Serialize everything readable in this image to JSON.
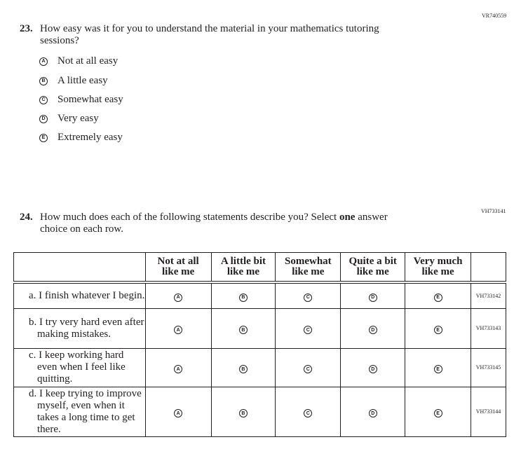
{
  "q23": {
    "id": "VR740559",
    "number": "23.",
    "text": "How easy was it for you to understand the material in your mathematics tutoring",
    "text2": "sessions?",
    "options": [
      {
        "letter": "A",
        "label": "Not at all easy"
      },
      {
        "letter": "B",
        "label": "A little easy"
      },
      {
        "letter": "C",
        "label": "Somewhat easy"
      },
      {
        "letter": "D",
        "label": "Very easy"
      },
      {
        "letter": "E",
        "label": "Extremely easy"
      }
    ]
  },
  "q24": {
    "id": "VH733141",
    "number": "24.",
    "text_a": "How much does each of the following statements describe you? Select ",
    "text_bold": "one",
    "text_b": " answer",
    "text2": "choice on each row.",
    "columns": [
      {
        "l1": "Not at all",
        "l2": "like me"
      },
      {
        "l1": "A little bit",
        "l2": "like me"
      },
      {
        "l1": "Somewhat",
        "l2": "like me"
      },
      {
        "l1": "Quite a bit",
        "l2": "like me"
      },
      {
        "l1": "Very much",
        "l2": "like me"
      }
    ],
    "letters": [
      "A",
      "B",
      "C",
      "D",
      "E"
    ],
    "rows": [
      {
        "label": "a. I finish whatever I begin.",
        "id": "VH733142"
      },
      {
        "label": "b. I try very hard even after making mistakes.",
        "id": "VH733143"
      },
      {
        "label": "c. I keep working hard even when I feel like quitting.",
        "id": "VH733145"
      },
      {
        "label": "d. I keep trying to improve myself, even when it takes a long time to get there.",
        "id": "VH733144"
      }
    ]
  }
}
